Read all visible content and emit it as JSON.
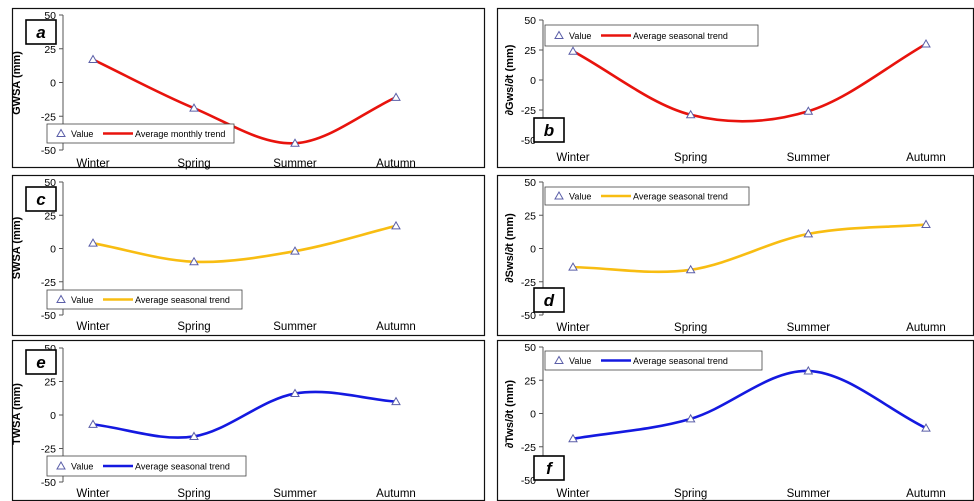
{
  "colors": {
    "red": "#e8130d",
    "yellow": "#f8bd12",
    "blue": "#1419e0",
    "marker": "#5b5fa8",
    "border": "#111111"
  },
  "chart_data": [
    {
      "id": "a",
      "panel_label": "a",
      "type": "line",
      "ylabel": "GWSA (mm)",
      "categories": [
        "Winter",
        "Spring",
        "Summer",
        "Autumn"
      ],
      "ylim": [
        -50,
        50
      ],
      "yticks": [
        -50,
        -25,
        0,
        25,
        50
      ],
      "series": [
        {
          "name": "Value",
          "kind": "marker",
          "values": [
            17,
            -19,
            -45,
            -11
          ]
        },
        {
          "name": "Average monthly trend",
          "kind": "trend",
          "color_key": "red",
          "values": [
            17,
            -19,
            -45,
            -11
          ]
        }
      ],
      "legend_position": "bottom-left"
    },
    {
      "id": "b",
      "panel_label": "b",
      "type": "line",
      "ylabel": "∂Gws/∂t  (mm)",
      "categories": [
        "Winter",
        "Spring",
        "Summer",
        "Autumn"
      ],
      "ylim": [
        -50,
        50
      ],
      "yticks": [
        -50,
        -25,
        0,
        25,
        50
      ],
      "series": [
        {
          "name": "Value",
          "kind": "marker",
          "values": [
            24,
            -29,
            -26,
            30
          ]
        },
        {
          "name": "Average seasonal trend",
          "kind": "trend",
          "color_key": "red",
          "values": [
            24,
            -29,
            -26,
            30
          ]
        }
      ],
      "legend_position": "top-left"
    },
    {
      "id": "c",
      "panel_label": "c",
      "type": "line",
      "ylabel": "SWSA (mm)",
      "categories": [
        "Winter",
        "Spring",
        "Summer",
        "Autumn"
      ],
      "ylim": [
        -50,
        50
      ],
      "yticks": [
        -50,
        -25,
        0,
        25,
        50
      ],
      "series": [
        {
          "name": "Value",
          "kind": "marker",
          "values": [
            4,
            -10,
            -2,
            17
          ]
        },
        {
          "name": "Average seasonal trend",
          "kind": "trend",
          "color_key": "yellow",
          "values": [
            4,
            -10,
            -2,
            17
          ]
        }
      ],
      "legend_position": "bottom-left"
    },
    {
      "id": "d",
      "panel_label": "d",
      "type": "line",
      "ylabel": "∂Sws/∂t  (mm)",
      "categories": [
        "Winter",
        "Spring",
        "Summer",
        "Autumn"
      ],
      "ylim": [
        -50,
        50
      ],
      "yticks": [
        -50,
        -25,
        0,
        25,
        50
      ],
      "series": [
        {
          "name": "Value",
          "kind": "marker",
          "values": [
            -14,
            -16,
            11,
            18
          ]
        },
        {
          "name": "Average seasonal trend",
          "kind": "trend",
          "color_key": "yellow",
          "values": [
            -14,
            -16,
            11,
            18
          ]
        }
      ],
      "legend_position": "top-left"
    },
    {
      "id": "e",
      "panel_label": "e",
      "type": "line",
      "ylabel": "TWSA (mm)",
      "categories": [
        "Winter",
        "Spring",
        "Summer",
        "Autumn"
      ],
      "ylim": [
        -50,
        50
      ],
      "yticks": [
        -50,
        -25,
        0,
        25,
        50
      ],
      "series": [
        {
          "name": "Value",
          "kind": "marker",
          "values": [
            -7,
            -16,
            16,
            10
          ]
        },
        {
          "name": "Average seasonal trend",
          "kind": "trend",
          "color_key": "blue",
          "values": [
            -7,
            -16,
            16,
            10
          ]
        }
      ],
      "legend_position": "bottom-left"
    },
    {
      "id": "f",
      "panel_label": "f",
      "type": "line",
      "ylabel": "∂Tws/∂t  (mm)",
      "categories": [
        "Winter",
        "Spring",
        "Summer",
        "Autumn"
      ],
      "ylim": [
        -50,
        50
      ],
      "yticks": [
        -50,
        -25,
        0,
        25,
        50
      ],
      "series": [
        {
          "name": "Value",
          "kind": "marker",
          "values": [
            -19,
            -4,
            32,
            -11
          ]
        },
        {
          "name": "Average seasonal trend",
          "kind": "trend",
          "color_key": "blue",
          "values": [
            -19,
            -4,
            32,
            -11
          ]
        }
      ],
      "legend_position": "top-left"
    }
  ]
}
